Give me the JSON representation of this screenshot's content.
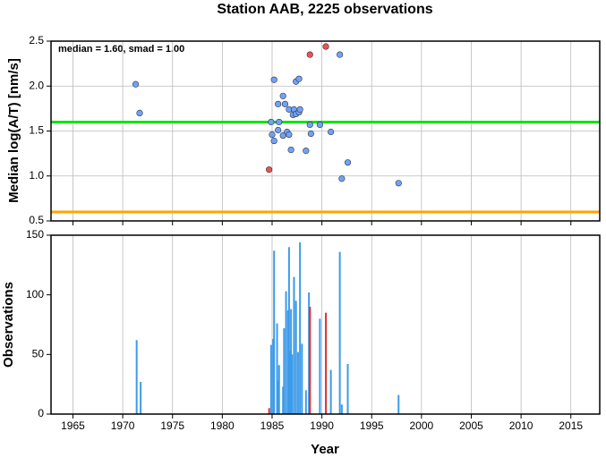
{
  "chart_data": [
    {
      "type": "scatter",
      "title": "Station AAB, 2225 observations",
      "annotation": "median = 1.60, smad = 1.00",
      "ylabel": "Median log(A/T) [nm/s]",
      "xlim": [
        1962.8,
        2017.9
      ],
      "xticks": [
        1965,
        1970,
        1975,
        1980,
        1985,
        1990,
        1995,
        2000,
        2005,
        2010,
        2015
      ],
      "ylim": [
        0.5,
        2.5
      ],
      "yticks": [
        0.5,
        {
          "value": 1,
          "label": "1.0"
        },
        1.5,
        {
          "value": 2,
          "label": "2.0"
        },
        2.5
      ],
      "grid": "both",
      "hlines": [
        {
          "value": 1.6,
          "color": "#00e600"
        },
        {
          "value": 0.6,
          "color": "#ffa500"
        }
      ],
      "series": [
        {
          "color": "#6fa3f7",
          "x": [
            1971.3,
            1971.7,
            1984.9,
            1985.2,
            1985.2,
            1985.0,
            1985.6,
            1985.7,
            1985.6,
            1986.1,
            1986.3,
            1986.1,
            1986.5,
            1986.7,
            1986.7,
            1986.9,
            1987.1,
            1987.2,
            1987.4,
            1987.4,
            1987.7,
            1987.7,
            1987.8,
            1988.4,
            1988.8,
            1988.9,
            1989.8,
            1990.9,
            1991.8,
            1992.0,
            1992.6,
            1997.7
          ],
          "values": [
            2.02,
            1.7,
            1.6,
            2.07,
            1.39,
            1.46,
            1.8,
            1.6,
            1.51,
            1.89,
            1.8,
            1.45,
            1.49,
            1.46,
            1.74,
            1.29,
            1.68,
            1.74,
            2.05,
            1.69,
            2.08,
            1.71,
            1.74,
            1.28,
            1.57,
            1.47,
            1.57,
            1.49,
            2.35,
            0.97,
            1.15,
            0.92
          ]
        },
        {
          "color": "#f05050",
          "x": [
            1984.7,
            1988.8,
            1990.4
          ],
          "values": [
            1.07,
            2.35,
            2.44
          ]
        }
      ]
    },
    {
      "type": "bar",
      "ylabel": "Observations",
      "xlabel": "Year",
      "xlim": [
        1962.8,
        2017.9
      ],
      "xticks": [
        1965,
        1970,
        1975,
        1980,
        1985,
        1990,
        1995,
        2000,
        2005,
        2010,
        2015
      ],
      "ylim": [
        0,
        150
      ],
      "yticks": [
        0,
        50,
        100,
        150
      ],
      "grid": "x",
      "series": [
        {
          "color": "#3d9be9",
          "x": [
            1971.4,
            1971.8,
            1984.9,
            1985.1,
            1985.2,
            1985.5,
            1985.6,
            1985.7,
            1986.1,
            1986.2,
            1986.4,
            1986.6,
            1986.7,
            1986.8,
            1986.9,
            1987.0,
            1987.2,
            1987.4,
            1987.6,
            1987.8,
            1988.0,
            1988.4,
            1988.7,
            1989.8,
            1990.9,
            1991.8,
            1992.0,
            1992.6,
            1997.7
          ],
          "values": [
            62,
            27,
            58,
            63,
            137,
            76,
            28,
            41,
            23,
            72,
            103,
            87,
            140,
            53,
            88,
            50,
            115,
            95,
            52,
            144,
            59,
            20,
            102,
            80,
            37,
            136,
            8,
            42,
            16
          ]
        },
        {
          "color": "#e03030",
          "x": [
            1984.7,
            1988.8,
            1990.4
          ],
          "values": [
            5,
            90,
            85
          ]
        }
      ]
    }
  ]
}
